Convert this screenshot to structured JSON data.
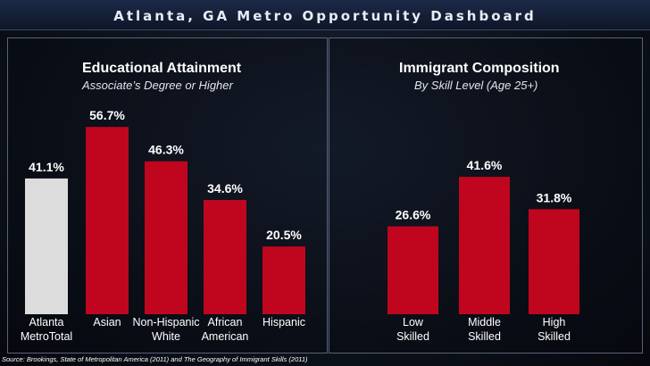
{
  "dashboard_title": "Atlanta, GA Metro Opportunity Dashboard",
  "source": "Source: Brookings, State of Metropolitan America (2011) and The Geography of Immigrant Skills (2011)",
  "colors": {
    "bar_red": "#c0061f",
    "bar_gray": "#dcdcdc"
  },
  "chart_data": [
    {
      "type": "bar",
      "title": "Educational Attainment",
      "subtitle": "Associate’s Degree or Higher",
      "categories": [
        [
          "Atlanta",
          "MetroTotal"
        ],
        [
          "Asian"
        ],
        [
          "Non-Hispanic",
          "White"
        ],
        [
          "African",
          "American"
        ],
        [
          "Hispanic"
        ]
      ],
      "values": [
        41.1,
        56.7,
        46.3,
        34.6,
        20.5
      ],
      "labels": [
        "41.1%",
        "56.7%",
        "46.3%",
        "34.6%",
        "20.5%"
      ],
      "highlight_first": true,
      "ylim": [
        0,
        60
      ]
    },
    {
      "type": "bar",
      "title": "Immigrant Composition",
      "subtitle": "By Skill Level (Age 25+)",
      "categories": [
        [
          "Low",
          "Skilled"
        ],
        [
          "Middle",
          "Skilled"
        ],
        [
          "High",
          "Skilled"
        ]
      ],
      "values": [
        26.6,
        41.6,
        31.8
      ],
      "labels": [
        "26.6%",
        "41.6%",
        "31.8%"
      ],
      "highlight_first": false,
      "ylim": [
        0,
        60
      ]
    }
  ]
}
